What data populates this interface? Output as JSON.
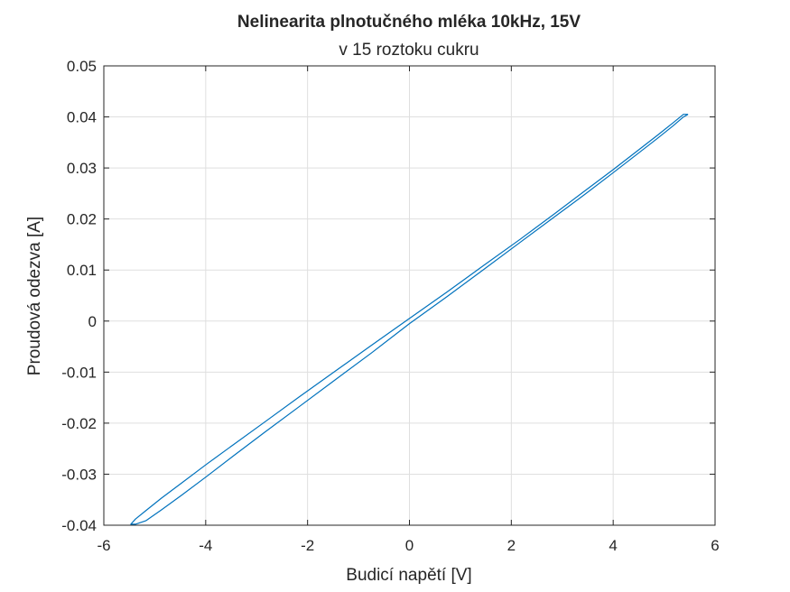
{
  "chart_data": {
    "type": "line",
    "title": "Nelinearita plnotučného mléka 10kHz, 15V",
    "subtitle": "v 15 roztoku cukru",
    "xlabel": "Budicí napětí [V]",
    "ylabel": "Proudová odezva [A]",
    "xlim": [
      -6,
      6
    ],
    "ylim": [
      -0.04,
      0.05
    ],
    "xticks": [
      -6,
      -4,
      -2,
      0,
      2,
      4,
      6
    ],
    "xtick_labels": [
      "-6",
      "-4",
      "-2",
      "0",
      "2",
      "4",
      "6"
    ],
    "yticks": [
      -0.04,
      -0.03,
      -0.02,
      -0.01,
      0,
      0.01,
      0.02,
      0.03,
      0.04,
      0.05
    ],
    "ytick_labels": [
      "-0.04",
      "-0.03",
      "-0.02",
      "-0.01",
      "0",
      "0.01",
      "0.02",
      "0.03",
      "0.04",
      "0.05"
    ],
    "grid": true,
    "series": [
      {
        "color": "#0072BD",
        "x": [
          5.47,
          5.38,
          5.17,
          4.87,
          4.47,
          3.99,
          3.44,
          2.83,
          2.17,
          1.47,
          0.74,
          0.0,
          -0.74,
          -1.47,
          -2.17,
          -2.83,
          -3.44,
          -3.99,
          -4.47,
          -4.87,
          -5.17,
          -5.38,
          -5.47,
          -5.38,
          -5.17,
          -4.87,
          -4.47,
          -3.99,
          -3.44,
          -2.83,
          -2.17,
          -1.47,
          -0.74,
          0.0,
          0.74,
          1.47,
          2.17,
          2.83,
          3.44,
          3.99,
          4.47,
          4.87,
          5.17,
          5.38,
          5.47
        ],
        "y": [
          0.0405,
          0.0405,
          0.0388,
          0.0364,
          0.0333,
          0.0296,
          0.0255,
          0.0209,
          0.016,
          0.011,
          0.0057,
          0.0005,
          -0.0047,
          -0.0099,
          -0.0149,
          -0.0197,
          -0.0241,
          -0.0281,
          -0.0317,
          -0.0347,
          -0.0371,
          -0.0388,
          -0.0398,
          -0.0398,
          -0.0391,
          -0.037,
          -0.0341,
          -0.0305,
          -0.0263,
          -0.0217,
          -0.0168,
          -0.0116,
          -0.0062,
          -0.0005,
          0.0048,
          0.0102,
          0.0154,
          0.0203,
          0.0248,
          0.029,
          0.0327,
          0.0358,
          0.0382,
          0.04,
          0.0405
        ]
      }
    ]
  }
}
